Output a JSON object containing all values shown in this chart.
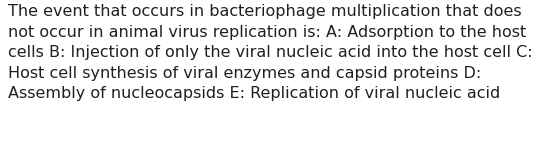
{
  "lines": [
    "The event that occurs in bacteriophage multiplication that does",
    "not occur in animal virus replication is: A: Adsorption to the host",
    "cells B: Injection of only the viral nucleic acid into the host cell C:",
    "Host cell synthesis of viral enzymes and capsid proteins D:",
    "Assembly of nucleocapsids E: Replication of viral nucleic acid"
  ],
  "background_color": "#ffffff",
  "text_color": "#231f20",
  "font_size": 11.5,
  "fig_width": 5.58,
  "fig_height": 1.46,
  "dpi": 100
}
